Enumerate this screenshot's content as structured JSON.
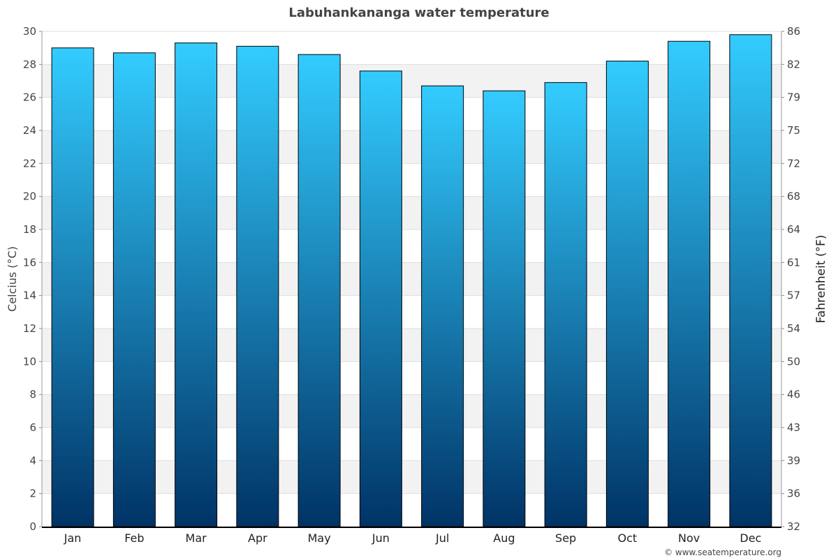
{
  "chart_data": {
    "type": "bar",
    "title": "Labuhankananga water temperature",
    "categories": [
      "Jan",
      "Feb",
      "Mar",
      "Apr",
      "May",
      "Jun",
      "Jul",
      "Aug",
      "Sep",
      "Oct",
      "Nov",
      "Dec"
    ],
    "values": [
      29.0,
      28.7,
      29.3,
      29.1,
      28.6,
      27.6,
      26.7,
      26.4,
      26.9,
      28.2,
      29.4,
      29.8
    ],
    "ylabel": "Celcius (°C)",
    "ylabel_right": "Fahrenheit (°F)",
    "ylim": [
      0,
      30
    ],
    "yticks": [
      0,
      2,
      4,
      6,
      8,
      10,
      12,
      14,
      16,
      18,
      20,
      22,
      24,
      26,
      28,
      30
    ],
    "yticks_right": [
      32,
      36,
      39,
      43,
      46,
      50,
      54,
      57,
      61,
      64,
      68,
      72,
      75,
      79,
      82,
      86
    ],
    "grid": true,
    "bar_gradient": {
      "top": "#33ccff",
      "bottom": "#003366"
    }
  },
  "credit": "© www.seatemperature.org"
}
